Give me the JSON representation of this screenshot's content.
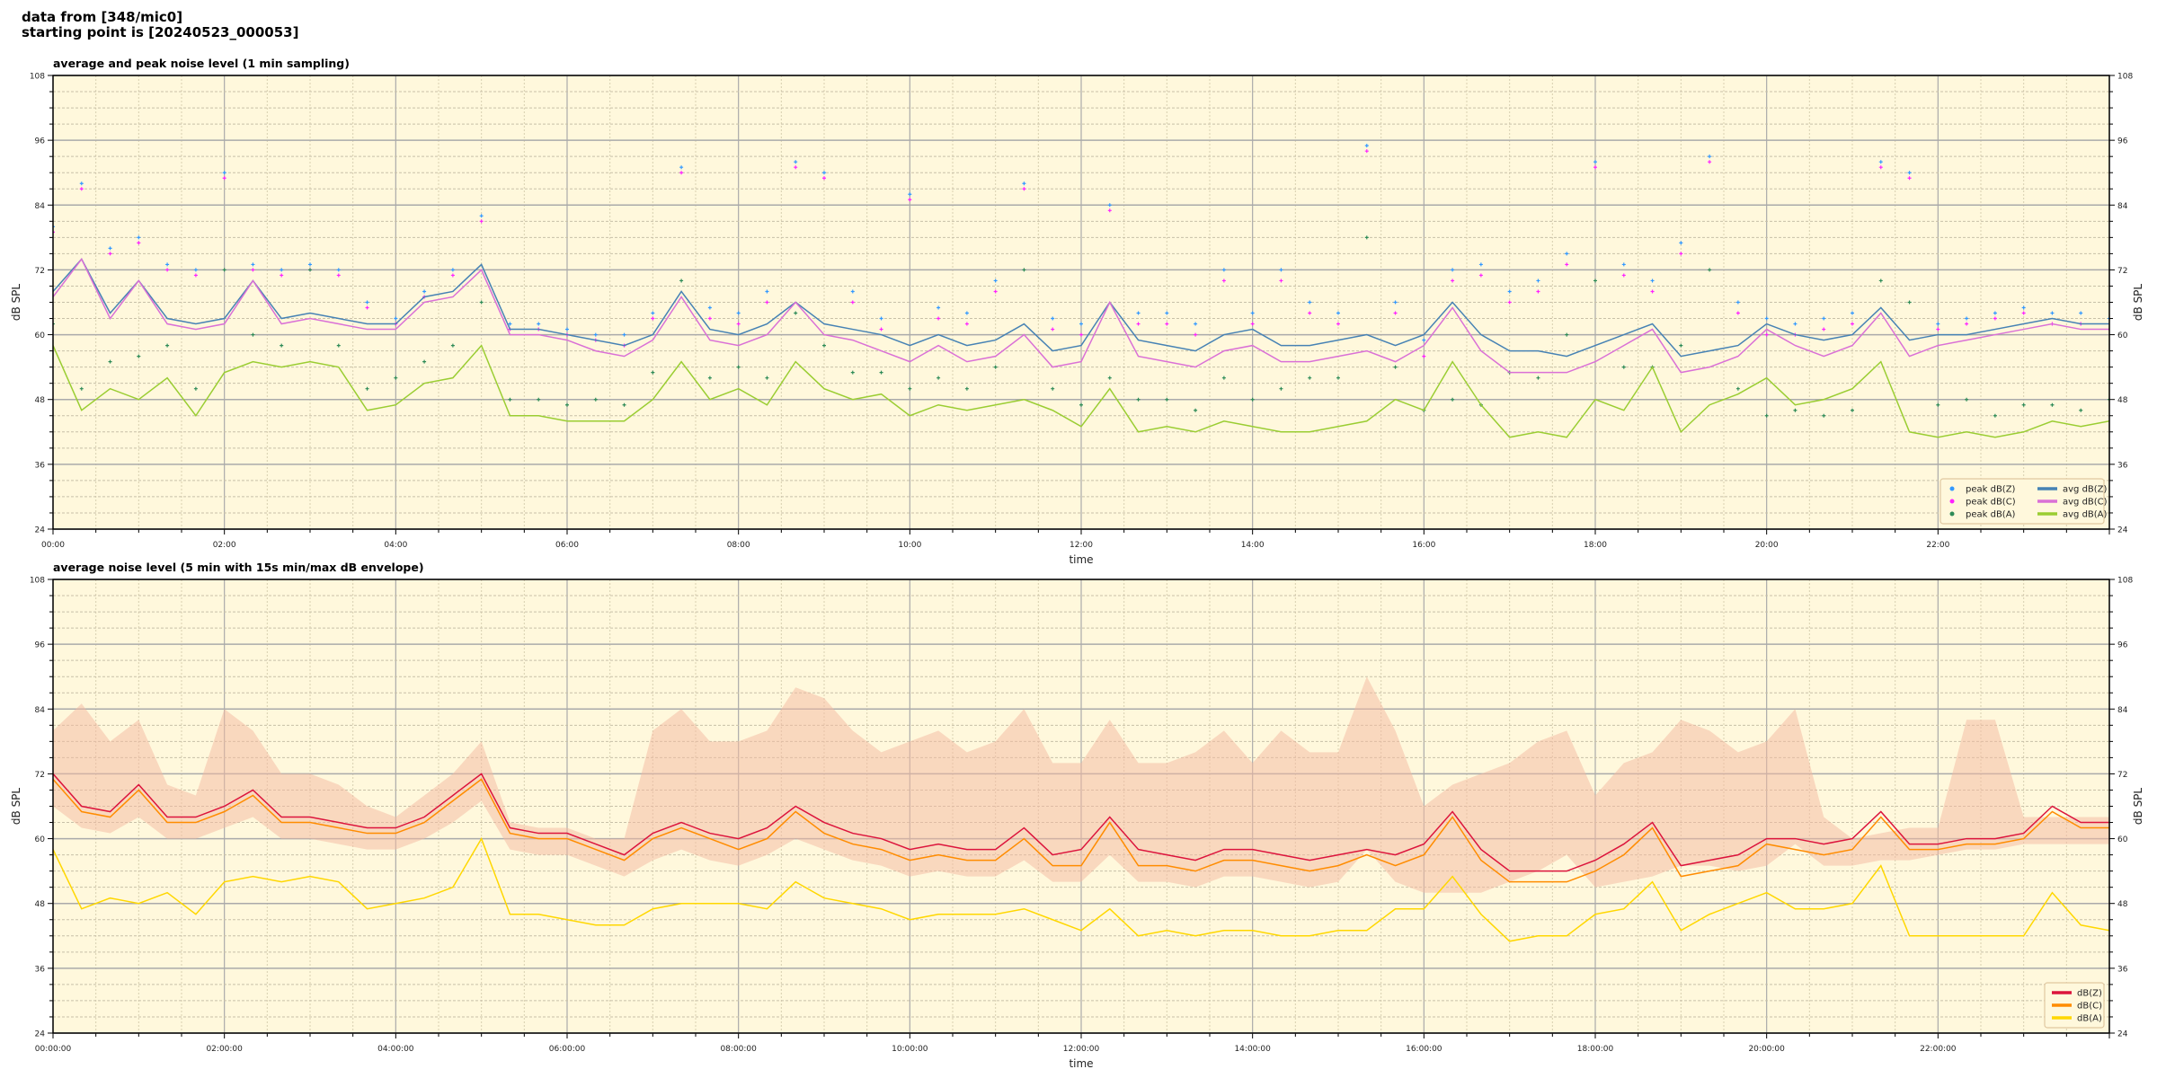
{
  "figure": {
    "suptitle_line1": "data from [348/mic0]",
    "suptitle_line2": "starting point is [20240523_000053]"
  },
  "chart_data": [
    {
      "type": "line",
      "title": "average and peak noise level (1 min sampling)",
      "xlabel": "time",
      "ylabel": "dB SPL",
      "ylim": [
        24,
        108
      ],
      "yticks": [
        "24",
        "36",
        "48",
        "60",
        "72",
        "84",
        "96",
        "108"
      ],
      "xlim_hours": [
        0,
        24
      ],
      "xticks": [
        "00:00",
        "02:00",
        "04:00",
        "06:00",
        "08:00",
        "10:00",
        "12:00",
        "14:00",
        "16:00",
        "18:00",
        "20:00",
        "22:00"
      ],
      "grid": true,
      "background": "#fff8dc",
      "legend_placement": "lower-right",
      "x_step_minutes": 20,
      "series": [
        {
          "name": "peak dB(Z)",
          "kind": "scatter",
          "color": "#3399ff",
          "values": [
            80,
            88,
            76,
            78,
            73,
            72,
            90,
            73,
            72,
            73,
            72,
            66,
            63,
            68,
            72,
            82,
            62,
            62,
            61,
            60,
            60,
            64,
            91,
            65,
            64,
            68,
            92,
            90,
            68,
            63,
            86,
            65,
            64,
            70,
            88,
            63,
            62,
            84,
            64,
            64,
            62,
            72,
            64,
            72,
            66,
            64,
            95,
            66,
            59,
            72,
            73,
            68,
            70,
            75,
            92,
            73,
            70,
            77,
            93,
            66,
            63,
            62,
            63,
            64,
            92,
            90,
            62,
            63,
            64,
            65,
            64,
            64,
            63
          ]
        },
        {
          "name": "peak dB(C)",
          "kind": "scatter",
          "color": "#ff22ff",
          "values": [
            79,
            87,
            75,
            77,
            72,
            71,
            89,
            72,
            71,
            72,
            71,
            65,
            62,
            67,
            71,
            81,
            61,
            61,
            60,
            59,
            58,
            63,
            90,
            63,
            62,
            66,
            91,
            89,
            66,
            61,
            85,
            63,
            62,
            68,
            87,
            61,
            60,
            83,
            62,
            62,
            60,
            70,
            62,
            70,
            64,
            62,
            94,
            64,
            56,
            70,
            71,
            66,
            68,
            73,
            91,
            71,
            68,
            75,
            92,
            64,
            60,
            60,
            61,
            62,
            91,
            89,
            61,
            62,
            63,
            64,
            62,
            62,
            61
          ]
        },
        {
          "name": "peak dB(A)",
          "kind": "scatter",
          "color": "#2e8b57",
          "values": [
            62,
            50,
            55,
            56,
            58,
            50,
            72,
            60,
            58,
            72,
            58,
            50,
            52,
            55,
            58,
            66,
            48,
            48,
            47,
            48,
            47,
            53,
            70,
            52,
            54,
            52,
            64,
            58,
            53,
            53,
            50,
            52,
            50,
            54,
            72,
            50,
            47,
            52,
            48,
            48,
            46,
            52,
            48,
            50,
            52,
            52,
            78,
            54,
            46,
            48,
            47,
            53,
            52,
            60,
            70,
            54,
            54,
            58,
            72,
            50,
            45,
            46,
            45,
            46,
            70,
            66,
            47,
            48,
            45,
            47,
            47,
            46,
            48
          ]
        },
        {
          "name": "avg dB(Z)",
          "kind": "line",
          "color": "#4682b4",
          "values": [
            68,
            74,
            64,
            70,
            63,
            62,
            63,
            70,
            63,
            64,
            63,
            62,
            62,
            67,
            68,
            73,
            61,
            61,
            60,
            59,
            58,
            60,
            68,
            61,
            60,
            62,
            66,
            62,
            61,
            60,
            58,
            60,
            58,
            59,
            62,
            57,
            58,
            66,
            59,
            58,
            57,
            60,
            61,
            58,
            58,
            59,
            60,
            58,
            60,
            66,
            60,
            57,
            57,
            56,
            58,
            60,
            62,
            56,
            57,
            58,
            62,
            60,
            59,
            60,
            65,
            59,
            60,
            60,
            61,
            62,
            63,
            62,
            62
          ]
        },
        {
          "name": "avg dB(C)",
          "kind": "line",
          "color": "#da70d6",
          "values": [
            67,
            74,
            63,
            70,
            62,
            61,
            62,
            70,
            62,
            63,
            62,
            61,
            61,
            66,
            67,
            72,
            60,
            60,
            59,
            57,
            56,
            59,
            67,
            59,
            58,
            60,
            66,
            60,
            59,
            57,
            55,
            58,
            55,
            56,
            60,
            54,
            55,
            66,
            56,
            55,
            54,
            57,
            58,
            55,
            55,
            56,
            57,
            55,
            58,
            65,
            57,
            53,
            53,
            53,
            55,
            58,
            61,
            53,
            54,
            56,
            61,
            58,
            56,
            58,
            64,
            56,
            58,
            59,
            60,
            61,
            62,
            61,
            61
          ]
        },
        {
          "name": "avg dB(A)",
          "kind": "line",
          "color": "#9acd32",
          "values": [
            58,
            46,
            50,
            48,
            52,
            45,
            53,
            55,
            54,
            55,
            54,
            46,
            47,
            51,
            52,
            58,
            45,
            45,
            44,
            44,
            44,
            48,
            55,
            48,
            50,
            47,
            55,
            50,
            48,
            49,
            45,
            47,
            46,
            47,
            48,
            46,
            43,
            50,
            42,
            43,
            42,
            44,
            43,
            42,
            42,
            43,
            44,
            48,
            46,
            55,
            47,
            41,
            42,
            41,
            48,
            46,
            54,
            42,
            47,
            49,
            52,
            47,
            48,
            50,
            55,
            42,
            41,
            42,
            41,
            42,
            44,
            43,
            44
          ]
        }
      ]
    },
    {
      "type": "line",
      "title": "average noise level (5 min with 15s min/max dB envelope)",
      "xlabel": "time",
      "ylabel": "dB SPL",
      "ylim": [
        24,
        108
      ],
      "yticks": [
        "24",
        "36",
        "48",
        "60",
        "72",
        "84",
        "96",
        "108"
      ],
      "xlim_hours": [
        0,
        24
      ],
      "xticks": [
        "00:00:00",
        "02:00:00",
        "04:00:00",
        "06:00:00",
        "08:00:00",
        "10:00:00",
        "12:00:00",
        "14:00:00",
        "16:00:00",
        "18:00:00",
        "20:00:00",
        "22:00:00"
      ],
      "grid": true,
      "background": "#fff8dc",
      "legend_placement": "lower-right",
      "x_step_minutes": 20,
      "envelope": {
        "color": "#f4b8a0",
        "max": [
          80,
          85,
          78,
          82,
          70,
          68,
          84,
          80,
          72,
          72,
          70,
          66,
          64,
          68,
          72,
          78,
          63,
          62,
          62,
          60,
          60,
          80,
          84,
          78,
          78,
          80,
          88,
          86,
          80,
          76,
          78,
          80,
          76,
          78,
          84,
          74,
          74,
          82,
          74,
          74,
          76,
          80,
          74,
          80,
          76,
          76,
          90,
          80,
          66,
          70,
          72,
          74,
          78,
          80,
          68,
          74,
          76,
          82,
          80,
          76,
          78,
          84,
          64,
          60,
          61,
          62,
          62,
          82,
          82,
          64,
          64,
          64,
          64
        ],
        "min": [
          66,
          62,
          61,
          64,
          60,
          60,
          62,
          64,
          60,
          60,
          59,
          58,
          58,
          60,
          63,
          67,
          58,
          57,
          57,
          55,
          53,
          56,
          58,
          56,
          55,
          57,
          60,
          58,
          56,
          55,
          53,
          54,
          53,
          53,
          56,
          52,
          52,
          57,
          52,
          52,
          51,
          53,
          53,
          52,
          51,
          52,
          58,
          52,
          50,
          50,
          50,
          52,
          54,
          57,
          51,
          52,
          53,
          55,
          55,
          54,
          55,
          59,
          55,
          55,
          56,
          56,
          57,
          58,
          58,
          59,
          59,
          59,
          59
        ]
      },
      "series": [
        {
          "name": "dB(Z)",
          "kind": "line",
          "color": "#dc143c",
          "values": [
            72,
            66,
            65,
            70,
            64,
            64,
            66,
            69,
            64,
            64,
            63,
            62,
            62,
            64,
            68,
            72,
            62,
            61,
            61,
            59,
            57,
            61,
            63,
            61,
            60,
            62,
            66,
            63,
            61,
            60,
            58,
            59,
            58,
            58,
            62,
            57,
            58,
            64,
            58,
            57,
            56,
            58,
            58,
            57,
            56,
            57,
            58,
            57,
            59,
            65,
            58,
            54,
            54,
            54,
            56,
            59,
            63,
            55,
            56,
            57,
            60,
            60,
            59,
            60,
            65,
            59,
            59,
            60,
            60,
            61,
            66,
            63,
            63
          ]
        },
        {
          "name": "dB(C)",
          "kind": "line",
          "color": "#ff8c00",
          "values": [
            71,
            65,
            64,
            69,
            63,
            63,
            65,
            68,
            63,
            63,
            62,
            61,
            61,
            63,
            67,
            71,
            61,
            60,
            60,
            58,
            56,
            60,
            62,
            60,
            58,
            60,
            65,
            61,
            59,
            58,
            56,
            57,
            56,
            56,
            60,
            55,
            55,
            63,
            55,
            55,
            54,
            56,
            56,
            55,
            54,
            55,
            57,
            55,
            57,
            64,
            56,
            52,
            52,
            52,
            54,
            57,
            62,
            53,
            54,
            55,
            59,
            58,
            57,
            58,
            64,
            58,
            58,
            59,
            59,
            60,
            65,
            62,
            62
          ]
        },
        {
          "name": "dB(A)",
          "kind": "line",
          "color": "#ffd700",
          "values": [
            58,
            47,
            49,
            48,
            50,
            46,
            52,
            53,
            52,
            53,
            52,
            47,
            48,
            49,
            51,
            60,
            46,
            46,
            45,
            44,
            44,
            47,
            48,
            48,
            48,
            47,
            52,
            49,
            48,
            47,
            45,
            46,
            46,
            46,
            47,
            45,
            43,
            47,
            42,
            43,
            42,
            43,
            43,
            42,
            42,
            43,
            43,
            47,
            47,
            53,
            46,
            41,
            42,
            42,
            46,
            47,
            52,
            43,
            46,
            48,
            50,
            47,
            47,
            48,
            55,
            42,
            42,
            42,
            42,
            42,
            50,
            44,
            43
          ]
        }
      ]
    }
  ]
}
